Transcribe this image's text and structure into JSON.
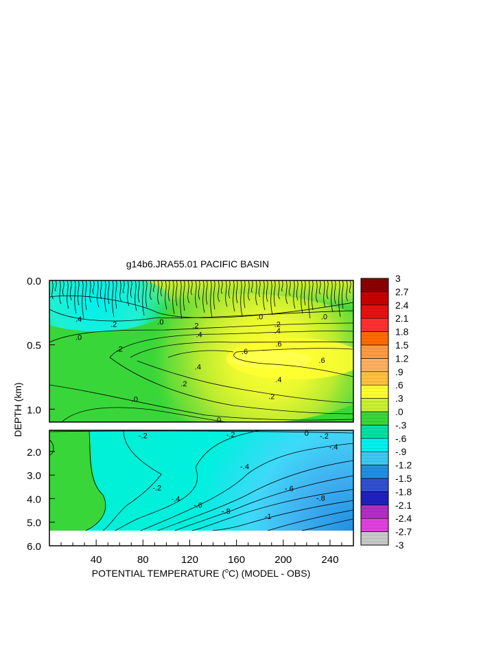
{
  "chart_data": {
    "type": "heatmap",
    "title": "g14b6.JRA55.01 PACIFIC BASIN",
    "xlabel": {
      "prefix": "POTENTIAL TEMPERATURE (",
      "sup": "o",
      "suffix": "C) (MODEL - OBS)"
    },
    "ylabel": "DEPTH (km)",
    "x_range": [
      0,
      260
    ],
    "x_ticks": [
      "40",
      "80",
      "120",
      "160",
      "200",
      "240"
    ],
    "x_tick_values": [
      40,
      80,
      120,
      160,
      200,
      240
    ],
    "upper_panel": {
      "depth_range": [
        0.0,
        1.1
      ],
      "y_ticks": [
        "0.0",
        "0.5",
        "1.0"
      ],
      "y_tick_values": [
        0.0,
        0.5,
        1.0
      ]
    },
    "lower_panel": {
      "depth_range": [
        1.1,
        6.0
      ],
      "y_ticks": [
        "2.0",
        "3.0",
        "4.0",
        "5.0",
        "6.0"
      ],
      "y_tick_values": [
        2.0,
        3.0,
        4.0,
        5.0,
        6.0
      ]
    },
    "contour_labels": [
      {
        "text": ".4",
        "x": 25,
        "depth": 0.3
      },
      {
        "text": ".2",
        "x": 55,
        "depth": 0.34
      },
      {
        "text": ".0",
        "x": 25,
        "depth": 0.44
      },
      {
        "text": ".2",
        "x": 60,
        "depth": 0.53
      },
      {
        "text": ".0",
        "x": 95,
        "depth": 0.32
      },
      {
        "text": ".2",
        "x": 125,
        "depth": 0.35
      },
      {
        "text": ".4",
        "x": 128,
        "depth": 0.42
      },
      {
        "text": ".0",
        "x": 180,
        "depth": 0.28
      },
      {
        "text": ".2",
        "x": 195,
        "depth": 0.34
      },
      {
        "text": ".4",
        "x": 195,
        "depth": 0.39
      },
      {
        "text": ".0",
        "x": 235,
        "depth": 0.28
      },
      {
        "text": ".6",
        "x": 167,
        "depth": 0.55
      },
      {
        "text": ".6",
        "x": 196,
        "depth": 0.49
      },
      {
        "text": ".6",
        "x": 233,
        "depth": 0.62
      },
      {
        "text": ".4",
        "x": 127,
        "depth": 0.67
      },
      {
        "text": ".4",
        "x": 196,
        "depth": 0.77
      },
      {
        "text": ".2",
        "x": 115,
        "depth": 0.8
      },
      {
        "text": ".2",
        "x": 190,
        "depth": 0.9
      },
      {
        "text": ".0",
        "x": 73,
        "depth": 0.92
      },
      {
        "text": "0",
        "x": 145,
        "depth": 1.08
      },
      {
        "text": "-.2",
        "x": 80,
        "depth": 1.32
      },
      {
        "text": "-.2",
        "x": 155,
        "depth": 1.28
      },
      {
        "text": "0",
        "x": 220,
        "depth": 1.21
      },
      {
        "text": "-.2",
        "x": 235,
        "depth": 1.33
      },
      {
        "text": "-.4",
        "x": 243,
        "depth": 1.8
      },
      {
        "text": "-.4",
        "x": 167,
        "depth": 2.63
      },
      {
        "text": "-.2",
        "x": 92,
        "depth": 3.54
      },
      {
        "text": "-.4",
        "x": 108,
        "depth": 4.0
      },
      {
        "text": "-.6",
        "x": 127,
        "depth": 4.27
      },
      {
        "text": "-.8",
        "x": 151,
        "depth": 4.52
      },
      {
        "text": "-.6",
        "x": 205,
        "depth": 3.57
      },
      {
        "text": "-.8",
        "x": 232,
        "depth": 3.98
      },
      {
        "text": "-1",
        "x": 187,
        "depth": 4.75
      }
    ],
    "colorbar": {
      "tick_labels": [
        "3",
        "2.7",
        "2.4",
        "2.1",
        "1.8",
        "1.5",
        "1.2",
        ".9",
        ".6",
        ".3",
        ".0",
        "-.3",
        "-.6",
        "-.9",
        "-1.2",
        "-1.5",
        "-1.8",
        "-2.1",
        "-2.4",
        "-2.7",
        "-3"
      ],
      "tick_values": [
        3,
        2.7,
        2.4,
        2.1,
        1.8,
        1.5,
        1.2,
        0.9,
        0.6,
        0.3,
        0.0,
        -0.3,
        -0.6,
        -0.9,
        -1.2,
        -1.5,
        -1.8,
        -2.1,
        -2.4,
        -2.7,
        -3
      ],
      "colors": [
        "#8b0000",
        "#c80000",
        "#e81010",
        "#ff3030",
        "#ff6a00",
        "#ff9a40",
        "#ffb060",
        "#ffc040",
        "#ffff30",
        "#c8f032",
        "#39d639",
        "#00e0a0",
        "#00f0f0",
        "#40c8f0",
        "#2090e0",
        "#3050d0",
        "#2020c0",
        "#b030c0",
        "#e040e0",
        "#c8c8c8",
        "#808080"
      ]
    }
  }
}
